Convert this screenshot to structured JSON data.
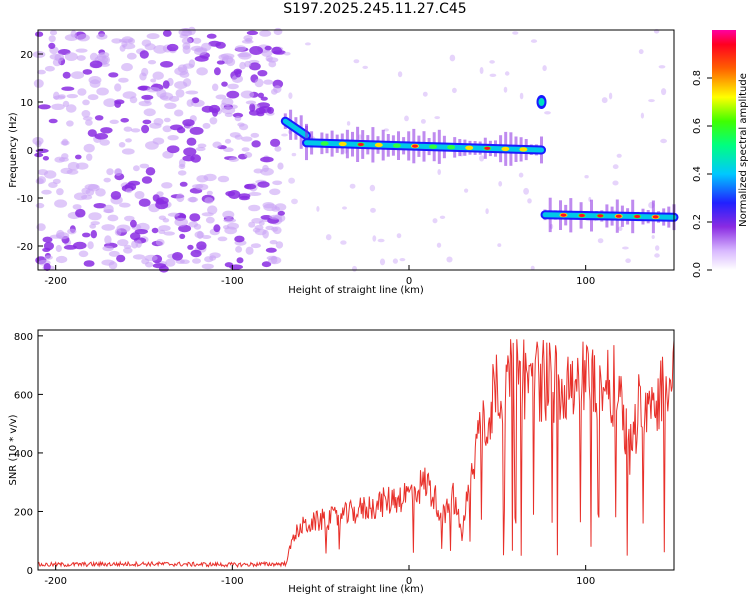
{
  "title": "S197.2025.245.11.27.C45",
  "colors": {
    "background": "#ffffff",
    "snr_line": "#e8302a",
    "purple_noise": "#8a2be2",
    "track_blue": "#1a1aff"
  },
  "chart_data": [
    {
      "type": "heatmap",
      "title": "S197.2025.245.11.27.C45",
      "xlabel": "Height of straight line (km)",
      "ylabel": "Frequency (Hz)",
      "xlim": [
        -210,
        150
      ],
      "ylim": [
        -25,
        25
      ],
      "xticks": [
        -200,
        -100,
        0,
        100
      ],
      "yticks": [
        -20,
        -10,
        0,
        10,
        20
      ],
      "colorbar": {
        "label": "Normalized spectral amplitude",
        "range": [
          0,
          1
        ],
        "ticks": [
          "0.0",
          "0.2",
          "0.4",
          "0.6",
          "0.8"
        ]
      },
      "track_segments": [
        {
          "x_start": -70,
          "x_end": -58,
          "freq_start": 6,
          "freq_end": 3
        },
        {
          "x_start": -58,
          "x_end": 75,
          "freq_start": 1.5,
          "freq_end": 0
        },
        {
          "x_start": 77,
          "x_end": 150,
          "freq_start": -13.5,
          "freq_end": -14
        }
      ]
    },
    {
      "type": "line",
      "xlabel": "Height of straight line (km)",
      "ylabel": "SNR (10 * v/v)",
      "xlim": [
        -210,
        150
      ],
      "ylim": [
        0,
        820
      ],
      "xticks": [
        -200,
        -100,
        0,
        100
      ],
      "yticks": [
        0,
        200,
        400,
        600,
        800
      ],
      "series": [
        {
          "name": "SNR",
          "x": [
            -210,
            -150,
            -100,
            -70,
            -65,
            -60,
            -50,
            -40,
            -30,
            -20,
            -10,
            0,
            10,
            20,
            25,
            30,
            35,
            40,
            45,
            50,
            60,
            70,
            80,
            90,
            100,
            110,
            120,
            125,
            130,
            140,
            150
          ],
          "values": [
            15,
            18,
            15,
            18,
            120,
            150,
            170,
            180,
            200,
            220,
            240,
            260,
            300,
            180,
            250,
            120,
            330,
            480,
            520,
            640,
            650,
            660,
            640,
            660,
            650,
            640,
            620,
            400,
            560,
            600,
            650
          ]
        }
      ]
    }
  ]
}
